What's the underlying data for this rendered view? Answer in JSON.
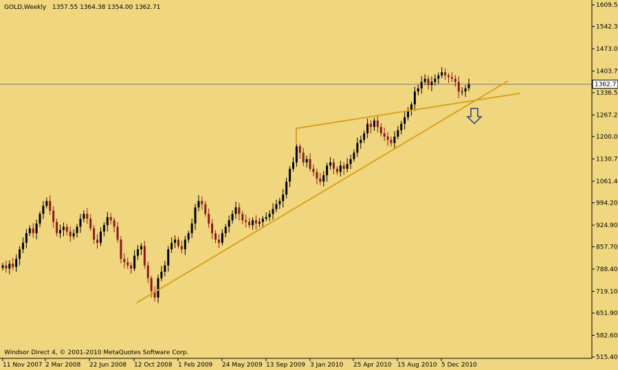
{
  "header": {
    "symbol": "GOLD,Weekly",
    "ohlc": "1357.55 1364.38 1354.00 1362.71"
  },
  "footer": {
    "copyright": "Windsor Direct 4, © 2001-2010 MetaQuotes Software Corp."
  },
  "colors": {
    "background": "#F0D77F",
    "grid": "#7A7A7A",
    "bull": "#000000",
    "bear": "#8B1A1A",
    "trendline": "#D9A21E"
  },
  "chart_data": {
    "type": "candlestick",
    "symbol": "GOLD",
    "timeframe": "Weekly",
    "last_price": "1362.71",
    "ylim": [
      515.4,
      1609.5
    ],
    "y_ticks": [
      "1609.50",
      "1542.30",
      "1473.00",
      "1403.70",
      "1336.50",
      "1267.20",
      "1200.00",
      "1130.70",
      "1061.40",
      "994.20",
      "924.90",
      "857.70",
      "788.40",
      "719.10",
      "651.90",
      "582.60",
      "515.40"
    ],
    "x_ticks": [
      "11 Nov 2007",
      "2 Mar 2008",
      "22 Jun 2008",
      "12 Oct 2008",
      "1 Feb 2009",
      "24 May 2009",
      "13 Sep 2009",
      "3 Jan 2010",
      "25 Apr 2010",
      "15 Aug 2010",
      "5 Dec 2010"
    ],
    "weekly_closes": [
      800,
      790,
      805,
      795,
      820,
      850,
      870,
      900,
      915,
      900,
      930,
      960,
      985,
      1000,
      970,
      935,
      900,
      910,
      920,
      905,
      890,
      900,
      920,
      945,
      960,
      945,
      915,
      880,
      870,
      905,
      925,
      950,
      940,
      920,
      880,
      820,
      810,
      800,
      790,
      830,
      850,
      860,
      800,
      760,
      720,
      700,
      760,
      780,
      800,
      850,
      870,
      880,
      860,
      850,
      880,
      900,
      930,
      980,
      1000,
      990,
      960,
      930,
      900,
      880,
      870,
      900,
      920,
      940,
      960,
      980,
      960,
      940,
      935,
      925,
      940,
      930,
      935,
      945,
      950,
      960,
      975,
      990,
      1000,
      1020,
      1060,
      1100,
      1120,
      1170,
      1150,
      1120,
      1130,
      1100,
      1090,
      1070,
      1060,
      1080,
      1110,
      1120,
      1100,
      1090,
      1110,
      1100,
      1115,
      1130,
      1150,
      1180,
      1190,
      1210,
      1240,
      1230,
      1250,
      1230,
      1210,
      1200,
      1190,
      1180,
      1200,
      1220,
      1240,
      1260,
      1280,
      1300,
      1340,
      1350,
      1370,
      1380,
      1360,
      1370,
      1380,
      1390,
      1400,
      1390,
      1385,
      1380,
      1370,
      1340,
      1340,
      1350,
      1363
    ],
    "trendlines": [
      {
        "from": [
          "12 Oct 2008",
          680
        ],
        "to": [
          "early 2011",
          1380
        ]
      },
      {
        "from": [
          "13 Sep 2009",
          1225
        ],
        "to": [
          "early 2011",
          1342
        ]
      }
    ],
    "annotations": [
      {
        "type": "arrow-down",
        "label": ""
      }
    ]
  }
}
